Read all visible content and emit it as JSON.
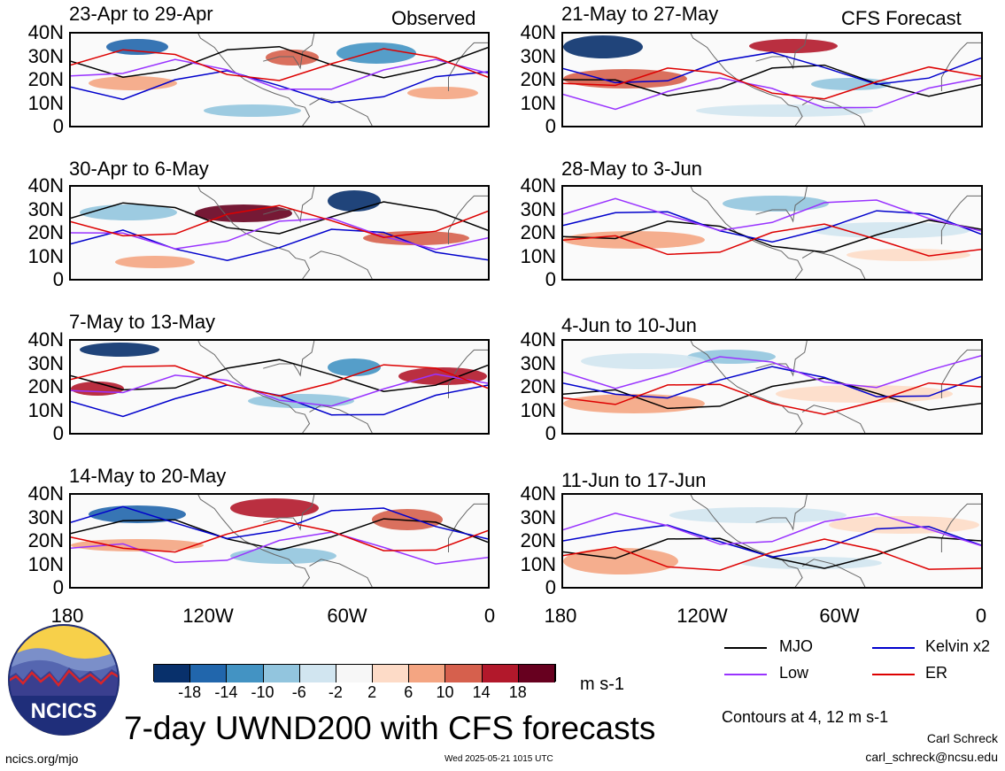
{
  "panels_left": [
    {
      "title": "23-Apr to 29-Apr",
      "tag": "Observed"
    },
    {
      "title": "30-Apr to 6-May",
      "tag": ""
    },
    {
      "title": "7-May to 13-May",
      "tag": ""
    },
    {
      "title": "14-May to 20-May",
      "tag": ""
    }
  ],
  "panels_right": [
    {
      "title": "21-May to 27-May",
      "tag": "CFS Forecast"
    },
    {
      "title": "28-May to 3-Jun",
      "tag": ""
    },
    {
      "title": "4-Jun to 10-Jun",
      "tag": ""
    },
    {
      "title": "11-Jun to 17-Jun",
      "tag": ""
    }
  ],
  "lat_labels": [
    "40N",
    "30N",
    "20N",
    "10N",
    "0"
  ],
  "lon_labels": [
    "180",
    "120W",
    "60W",
    "0"
  ],
  "colorbar": {
    "labels": [
      "-18",
      "-14",
      "-10",
      "-6",
      "-2",
      "2",
      "6",
      "10",
      "14",
      "18"
    ],
    "colors": [
      "#08306b",
      "#2166ac",
      "#4393c3",
      "#92c5de",
      "#d1e5f0",
      "#f7f7f7",
      "#fddbc7",
      "#f4a582",
      "#d6604d",
      "#b2182b",
      "#67001f"
    ],
    "units": "m s-1"
  },
  "legend": [
    {
      "label": "MJO",
      "color": "#000000"
    },
    {
      "label": "Kelvin x2",
      "color": "#0000cc"
    },
    {
      "label": "Low",
      "color": "#9933ff"
    },
    {
      "label": "ER",
      "color": "#dd0000"
    }
  ],
  "contours_note": "Contours at 4, 12 m s-1",
  "logo_text": "NCICS",
  "main_title": "7-day UWND200 with CFS forecasts",
  "author": "Carl Schreck",
  "email": "carl_schreck@ncsu.edu",
  "site": "ncics.org/mjo",
  "timestamp": "Wed 2025-05-21 1015 UTC"
}
